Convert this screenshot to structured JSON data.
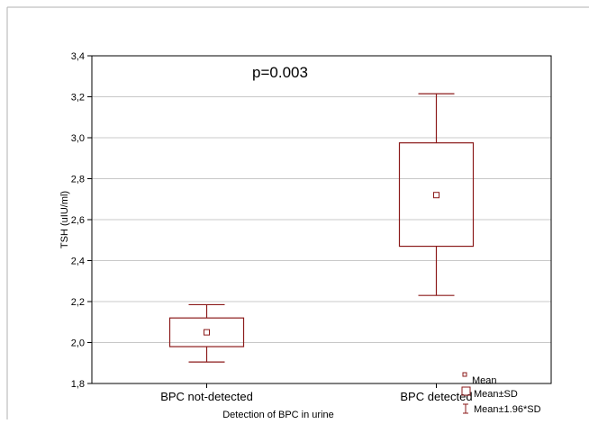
{
  "chart_data": {
    "type": "box",
    "annotation": "p=0.003",
    "xlabel": "Detection of BPC in urine",
    "ylabel": "TSH (uIU/ml)",
    "ylim": [
      1.8,
      3.4
    ],
    "yticks": [
      1.8,
      2.0,
      2.2,
      2.4,
      2.6,
      2.8,
      3.0,
      3.2,
      3.4
    ],
    "ytick_labels": [
      "1,8",
      "2,0",
      "2,2",
      "2,4",
      "2,6",
      "2,8",
      "3,0",
      "3,2",
      "3,4"
    ],
    "grid": "horizontal",
    "categories": [
      "BPC not-detected",
      "BPC detected"
    ],
    "groups": [
      {
        "category": "BPC not-detected",
        "mean": 2.05,
        "mean_minus_sd": 1.98,
        "mean_plus_sd": 2.12,
        "mean_minus_196sd": 1.905,
        "mean_plus_196sd": 2.185
      },
      {
        "category": "BPC detected",
        "mean": 2.72,
        "mean_minus_sd": 2.47,
        "mean_plus_sd": 2.975,
        "mean_minus_196sd": 2.23,
        "mean_plus_196sd": 3.215
      }
    ],
    "legend": {
      "placement": "bottom-right",
      "entries": [
        "Mean",
        "Mean±SD",
        "Mean±1.96*SD"
      ]
    },
    "colors": {
      "series": "#8b1a1a",
      "axis": "#000000",
      "grid": "#c8c8c8",
      "frame": "#b0b0b0"
    }
  }
}
